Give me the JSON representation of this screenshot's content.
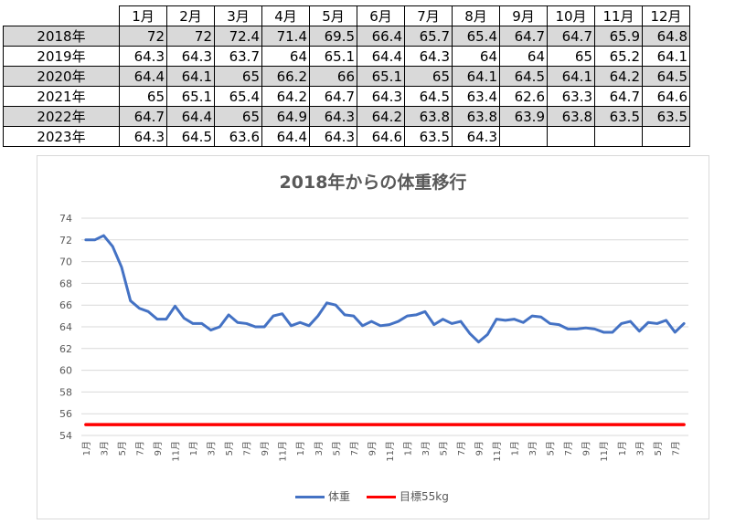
{
  "table": {
    "headers": [
      "1月",
      "2月",
      "3月",
      "4月",
      "5月",
      "6月",
      "7月",
      "8月",
      "9月",
      "10月",
      "11月",
      "12月"
    ],
    "rows": [
      {
        "year": "2018年",
        "values": [
          "72",
          "72",
          "72.4",
          "71.4",
          "69.5",
          "66.4",
          "65.7",
          "65.4",
          "64.7",
          "64.7",
          "65.9",
          "64.8"
        ]
      },
      {
        "year": "2019年",
        "values": [
          "64.3",
          "64.3",
          "63.7",
          "64",
          "65.1",
          "64.4",
          "64.3",
          "64",
          "64",
          "65",
          "65.2",
          "64.1"
        ]
      },
      {
        "year": "2020年",
        "values": [
          "64.4",
          "64.1",
          "65",
          "66.2",
          "66",
          "65.1",
          "65",
          "64.1",
          "64.5",
          "64.1",
          "64.2",
          "64.5"
        ]
      },
      {
        "year": "2021年",
        "values": [
          "65",
          "65.1",
          "65.4",
          "64.2",
          "64.7",
          "64.3",
          "64.5",
          "63.4",
          "62.6",
          "63.3",
          "64.7",
          "64.6"
        ]
      },
      {
        "year": "2022年",
        "values": [
          "64.7",
          "64.4",
          "65",
          "64.9",
          "64.3",
          "64.2",
          "63.8",
          "63.8",
          "63.9",
          "63.8",
          "63.5",
          "63.5"
        ]
      },
      {
        "year": "2023年",
        "values": [
          "64.3",
          "64.5",
          "63.6",
          "64.4",
          "64.3",
          "64.6",
          "63.5",
          "64.3",
          "",
          "",
          "",
          ""
        ]
      }
    ]
  },
  "chart_data": {
    "type": "line",
    "title": "2018年からの体重移行",
    "ylim": [
      54,
      74
    ],
    "yticks": [
      "54",
      "56",
      "58",
      "60",
      "62",
      "64",
      "66",
      "68",
      "70",
      "72",
      "74"
    ],
    "x_tick_labels": [
      "1月",
      "3月",
      "5月",
      "7月",
      "9月",
      "11月",
      "1月",
      "3月",
      "5月",
      "7月",
      "9月",
      "11月",
      "1月",
      "3月",
      "5月",
      "7月",
      "9月",
      "11月",
      "1月",
      "3月",
      "5月",
      "7月",
      "9月",
      "11月",
      "1月",
      "3月",
      "5月",
      "7月",
      "9月",
      "11月",
      "1月",
      "3月",
      "5月",
      "7月"
    ],
    "grid": true,
    "legend": "bottom",
    "series": [
      {
        "name": "体重",
        "color": "#4472c4",
        "values": [
          72,
          72,
          72.4,
          71.4,
          69.5,
          66.4,
          65.7,
          65.4,
          64.7,
          64.7,
          65.9,
          64.8,
          64.3,
          64.3,
          63.7,
          64,
          65.1,
          64.4,
          64.3,
          64,
          64,
          65,
          65.2,
          64.1,
          64.4,
          64.1,
          65,
          66.2,
          66,
          65.1,
          65,
          64.1,
          64.5,
          64.1,
          64.2,
          64.5,
          65,
          65.1,
          65.4,
          64.2,
          64.7,
          64.3,
          64.5,
          63.4,
          62.6,
          63.3,
          64.7,
          64.6,
          64.7,
          64.4,
          65,
          64.9,
          64.3,
          64.2,
          63.8,
          63.8,
          63.9,
          63.8,
          63.5,
          63.5,
          64.3,
          64.5,
          63.6,
          64.4,
          64.3,
          64.6,
          63.5,
          64.3
        ]
      },
      {
        "name": "目標55kg",
        "color": "#ff0000",
        "values": [
          55,
          55,
          55,
          55,
          55,
          55,
          55,
          55,
          55,
          55,
          55,
          55,
          55,
          55,
          55,
          55,
          55,
          55,
          55,
          55,
          55,
          55,
          55,
          55,
          55,
          55,
          55,
          55,
          55,
          55,
          55,
          55,
          55,
          55,
          55,
          55,
          55,
          55,
          55,
          55,
          55,
          55,
          55,
          55,
          55,
          55,
          55,
          55,
          55,
          55,
          55,
          55,
          55,
          55,
          55,
          55,
          55,
          55,
          55,
          55,
          55,
          55,
          55,
          55,
          55,
          55,
          55,
          55
        ]
      }
    ]
  }
}
